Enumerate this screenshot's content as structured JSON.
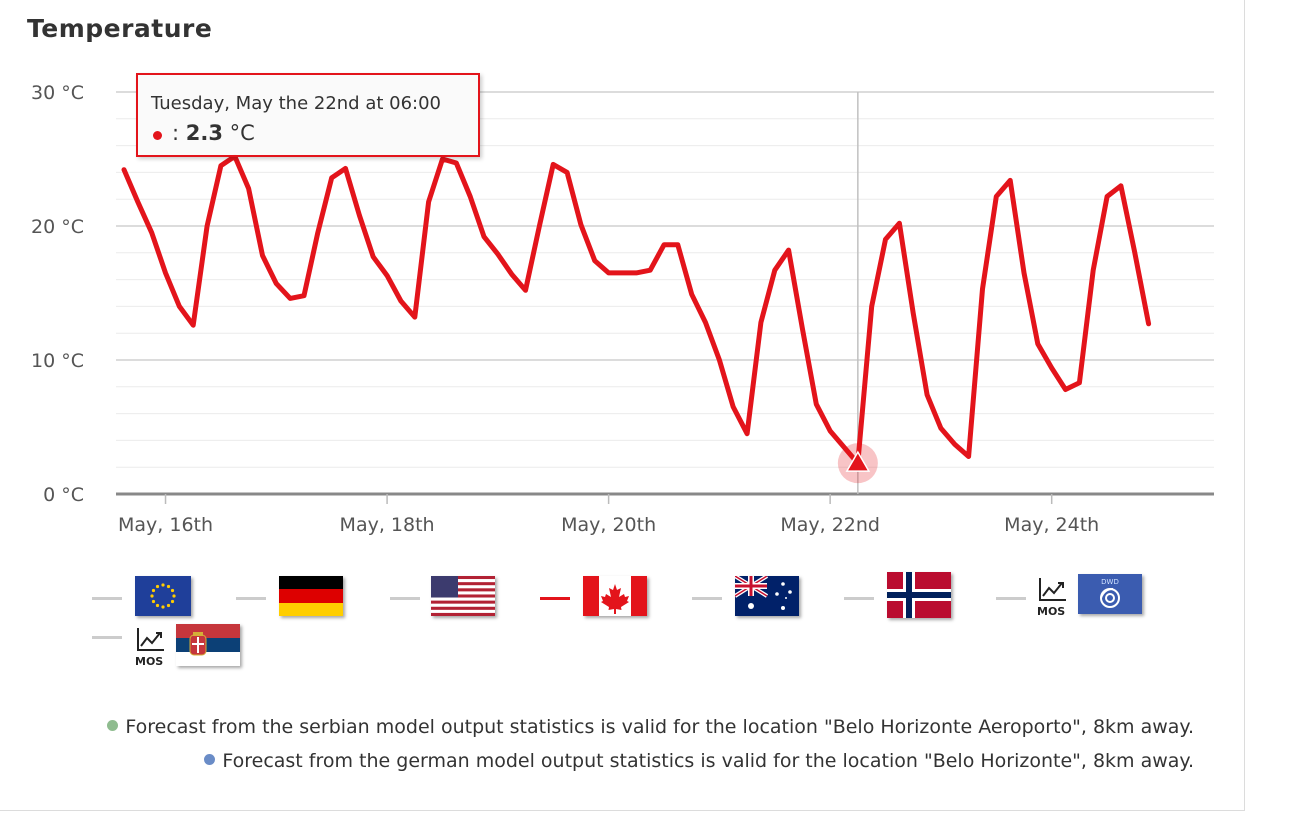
{
  "title": "Temperature",
  "colors": {
    "series": "#e3141b",
    "grid_major": "#c8c8c8",
    "grid_minor": "#ececec",
    "inactive_legend": "#cccccc",
    "note_green": "#8fbc8f",
    "note_blue": "#6a8cc7"
  },
  "tooltip": {
    "header": "Tuesday, May the 22nd at 06:00",
    "sep": ": ",
    "value": "2.3",
    "unit": " °C"
  },
  "chart_data": {
    "type": "line",
    "title": "Temperature",
    "ylabel": "",
    "ylim": [
      0,
      30
    ],
    "yticks": [
      "30 °C",
      "20 °C",
      "10 °C",
      "0 °C"
    ],
    "yticks_values": [
      30,
      20,
      10,
      0
    ],
    "xlim_hours": [
      0,
      234
    ],
    "xticks": [
      {
        "label": "May, 16th",
        "hour": 9
      },
      {
        "label": "May, 18th",
        "hour": 57
      },
      {
        "label": "May, 20th",
        "hour": 105
      },
      {
        "label": "May, 22nd",
        "hour": 153
      },
      {
        "label": "May, 24th",
        "hour": 201
      }
    ],
    "x_start": "May 15th 15:00",
    "x_step_hours": 3,
    "series": [
      {
        "values": [
          24.2,
          21.8,
          19.5,
          16.5,
          14.0,
          12.6,
          20.0,
          24.5,
          25.2,
          22.8,
          17.8,
          15.7,
          14.6,
          14.8,
          19.5,
          23.6,
          24.3,
          20.8,
          17.7,
          16.3,
          14.4,
          13.2,
          21.8,
          25.0,
          24.7,
          22.2,
          19.2,
          17.9,
          16.4,
          15.2,
          20.0,
          24.6,
          24.0,
          20.1,
          17.4,
          16.5,
          16.5,
          16.5,
          16.7,
          18.6,
          18.6,
          14.9,
          12.8,
          10.0,
          6.5,
          4.5,
          12.8,
          16.7,
          18.2,
          12.3,
          6.7,
          4.7,
          3.5,
          2.3,
          14.0,
          19.0,
          20.2,
          13.5,
          7.4,
          4.9,
          3.7,
          2.8,
          15.3,
          22.2,
          23.4,
          16.5,
          11.2,
          9.4,
          7.8,
          8.3,
          16.7,
          22.2,
          23.0,
          18.0,
          12.7
        ]
      }
    ],
    "highlight": {
      "date": "May 22nd 06:00",
      "value": 2.3
    },
    "crosshair": "May 22nd 06:00",
    "grid": true,
    "legend": "bottom"
  },
  "legend": [
    {
      "name": "European",
      "icon": "eu-flag-icon",
      "active": false
    },
    {
      "name": "German",
      "icon": "germany-flag-icon",
      "active": false
    },
    {
      "name": "American",
      "icon": "usa-flag-icon",
      "active": false
    },
    {
      "name": "Canadian",
      "icon": "canada-flag-icon",
      "active": true
    },
    {
      "name": "Australian",
      "icon": "australia-flag-icon",
      "active": false
    },
    {
      "name": "Norwegian",
      "icon": "norway-flag-icon",
      "active": false
    },
    {
      "name": "German MOS",
      "icon": "dwd-mos-icon",
      "active": false,
      "mos_label": "MOS",
      "badge_label": "DWD"
    },
    {
      "name": "Serbian MOS",
      "icon": "serbia-mos-icon",
      "active": false,
      "mos_label": "MOS"
    }
  ],
  "notes": [
    {
      "text": "Forecast from the serbian model output statistics is valid for the location \"Belo Horizonte Aeroporto\", 8km away.",
      "color": "#8fbc8f"
    },
    {
      "text": "Forecast from the german model output statistics is valid for the location \"Belo Horizonte\", 8km away.",
      "color": "#6a8cc7"
    }
  ]
}
